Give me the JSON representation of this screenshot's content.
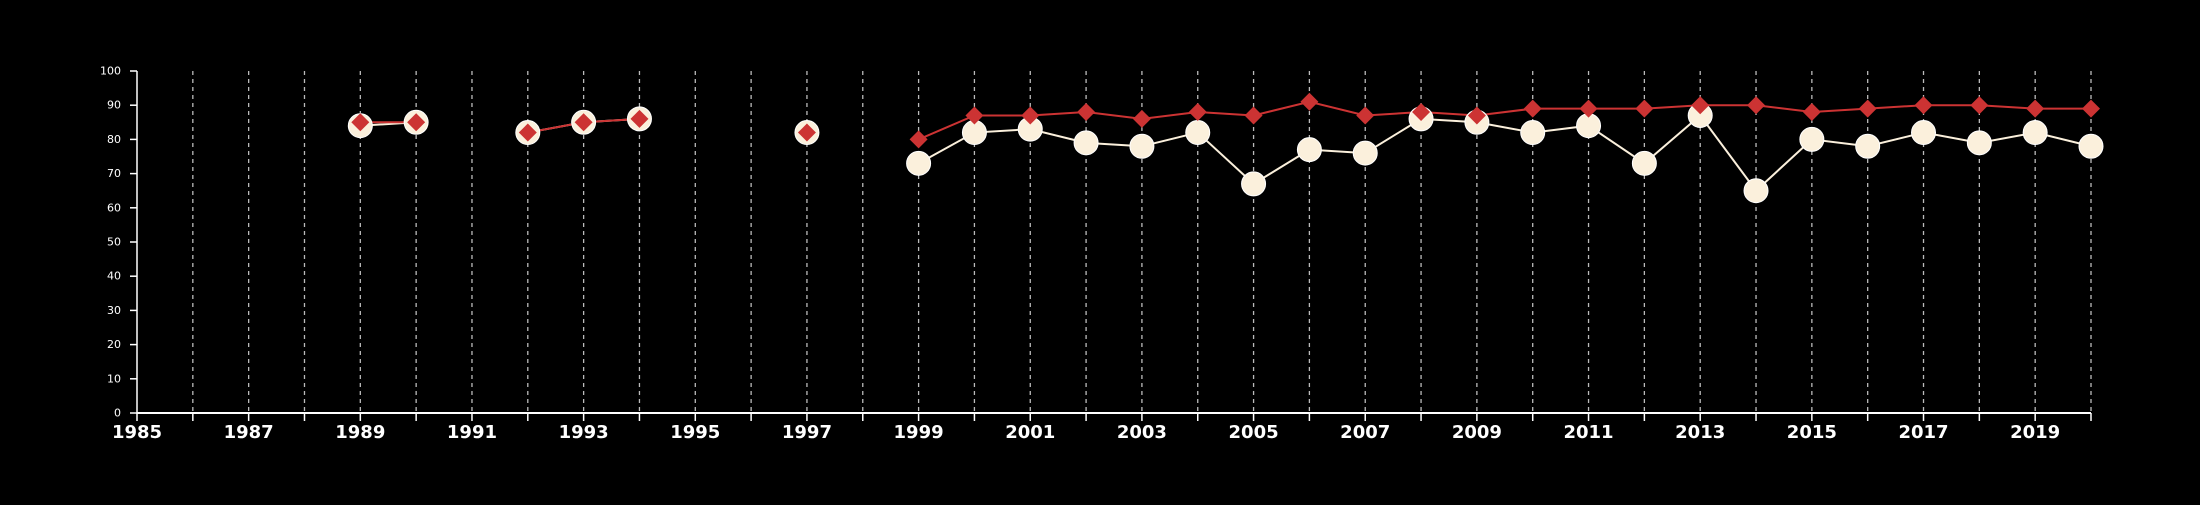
{
  "chart_data": {
    "type": "line",
    "title": "",
    "xlabel": "",
    "ylabel": "",
    "xlim": [
      1985,
      2020
    ],
    "ylim": [
      0,
      100
    ],
    "x_tick_labels": [
      "1985",
      "1987",
      "1989",
      "1991",
      "1993",
      "1995",
      "1997",
      "1999",
      "2001",
      "2003",
      "2005",
      "2007",
      "2009",
      "2011",
      "2013",
      "2015",
      "2017",
      "2019"
    ],
    "y_tick_labels": [
      "0",
      "10",
      "20",
      "30",
      "40",
      "50",
      "60",
      "70",
      "80",
      "90",
      "100"
    ],
    "vertical_grid": "dashed, every year 1986-2020",
    "colors": {
      "background": "#000000",
      "axis": "#ffffff",
      "grid": "#bbbbbb",
      "series_red": "#cc3333",
      "series_cream": "#fbf0dc"
    },
    "series": [
      {
        "marker": "circle",
        "color": "#fbf0dc",
        "x": [
          1989,
          1990,
          1992,
          1993,
          1994,
          1997,
          1999,
          2000,
          2001,
          2002,
          2003,
          2004,
          2005,
          2006,
          2007,
          2008,
          2009,
          2010,
          2011,
          2012,
          2013,
          2014,
          2015,
          2016,
          2017,
          2018,
          2019,
          2020
        ],
        "values": [
          84,
          85,
          82,
          85,
          86,
          82,
          73,
          82,
          83,
          79,
          78,
          82,
          67,
          77,
          76,
          86,
          85,
          82,
          84,
          73,
          87,
          65,
          80,
          78,
          82,
          79,
          82,
          78
        ]
      },
      {
        "marker": "diamond",
        "color": "#cc3333",
        "x": [
          1989,
          1990,
          1992,
          1993,
          1994,
          1997,
          1999,
          2000,
          2001,
          2002,
          2003,
          2004,
          2005,
          2006,
          2007,
          2008,
          2009,
          2010,
          2011,
          2012,
          2013,
          2014,
          2015,
          2016,
          2017,
          2018,
          2019,
          2020
        ],
        "values": [
          85,
          85,
          82,
          85,
          86,
          82,
          80,
          87,
          87,
          88,
          86,
          88,
          87,
          91,
          87,
          88,
          87,
          89,
          89,
          89,
          90,
          90,
          88,
          89,
          90,
          90,
          89,
          89
        ]
      }
    ]
  }
}
